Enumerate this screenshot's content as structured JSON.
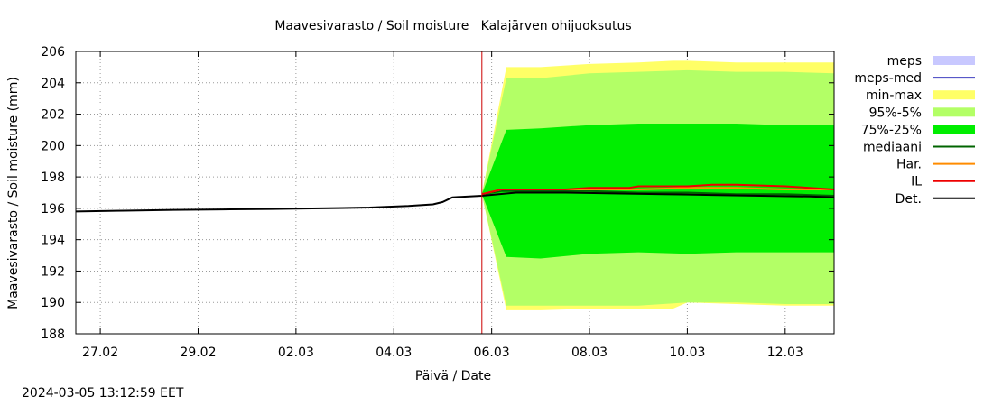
{
  "chart_data": {
    "type": "area",
    "title": "Maavesivarasto / Soil moisture   Kalajärven ohijuoksutus",
    "xlabel": "Päivä / Date",
    "ylabel": "Maavesivarasto / Soil moisture (mm)",
    "ylim": [
      188,
      206
    ],
    "xlim_days": [
      -0.5,
      15.0
    ],
    "x_unit": "days since 27.02 00:00",
    "forecast_start_day": 7.8,
    "grid": true,
    "legend_position": "right",
    "x_ticks": [
      {
        "day": 0,
        "label": "27.02"
      },
      {
        "day": 2,
        "label": "29.02"
      },
      {
        "day": 4,
        "label": "02.03"
      },
      {
        "day": 6,
        "label": "04.03"
      },
      {
        "day": 8,
        "label": "06.03"
      },
      {
        "day": 10,
        "label": "08.03"
      },
      {
        "day": 12,
        "label": "10.03"
      },
      {
        "day": 14,
        "label": "12.03"
      }
    ],
    "y_ticks": [
      188,
      190,
      192,
      194,
      196,
      198,
      200,
      202,
      204,
      206
    ],
    "legend": [
      {
        "key": "meps",
        "label": "meps",
        "kind": "box",
        "color": "#c8c8ff"
      },
      {
        "key": "meps-med",
        "label": "meps-med",
        "kind": "line",
        "color": "#4040c0"
      },
      {
        "key": "min-max",
        "label": "min-max",
        "kind": "box",
        "color": "#ffff66"
      },
      {
        "key": "p95-5",
        "label": "95%-5%",
        "kind": "box",
        "color": "#b3ff66"
      },
      {
        "key": "p75-25",
        "label": "75%-25%",
        "kind": "box",
        "color": "#00ee00"
      },
      {
        "key": "mediaani",
        "label": "mediaani",
        "kind": "line",
        "color": "#006400"
      },
      {
        "key": "har",
        "label": "Har.",
        "kind": "line",
        "color": "#ff8c00"
      },
      {
        "key": "il",
        "label": "IL",
        "kind": "line",
        "color": "#ee0000"
      },
      {
        "key": "det",
        "label": "Det.",
        "kind": "line",
        "color": "#000000"
      }
    ],
    "bands": [
      {
        "key": "min-max",
        "color": "#ffff66",
        "x": [
          7.8,
          8.3,
          9.0,
          10.0,
          11.0,
          11.7,
          12.0,
          13.0,
          14.0,
          15.0
        ],
        "lower": [
          196.9,
          189.5,
          189.5,
          189.6,
          189.6,
          189.6,
          190.0,
          189.9,
          189.8,
          189.8
        ],
        "upper": [
          196.9,
          205.0,
          205.0,
          205.2,
          205.3,
          205.4,
          205.4,
          205.3,
          205.3,
          205.3
        ]
      },
      {
        "key": "p95-5",
        "color": "#b3ff66",
        "x": [
          7.8,
          8.3,
          9.0,
          10.0,
          11.0,
          12.0,
          13.0,
          14.0,
          15.0
        ],
        "lower": [
          196.9,
          189.8,
          189.8,
          189.8,
          189.8,
          190.0,
          190.0,
          189.9,
          189.9
        ],
        "upper": [
          196.9,
          204.3,
          204.3,
          204.6,
          204.7,
          204.8,
          204.7,
          204.7,
          204.6
        ]
      },
      {
        "key": "p75-25",
        "color": "#00ee00",
        "x": [
          7.8,
          8.3,
          9.0,
          10.0,
          11.0,
          12.0,
          13.0,
          14.0,
          15.0
        ],
        "lower": [
          196.9,
          192.9,
          192.8,
          193.1,
          193.2,
          193.1,
          193.2,
          193.2,
          193.2
        ],
        "upper": [
          196.9,
          201.0,
          201.1,
          201.3,
          201.4,
          201.4,
          201.4,
          201.3,
          201.3
        ]
      }
    ],
    "series": [
      {
        "key": "mediaani",
        "name": "mediaani",
        "color": "#006400",
        "width": 2,
        "x": [
          7.8,
          8.2,
          9.0,
          10.0,
          11.0,
          12.0,
          13.0,
          14.0,
          15.0
        ],
        "y": [
          196.9,
          197.1,
          197.1,
          197.1,
          197.0,
          197.0,
          196.9,
          196.9,
          196.8
        ]
      },
      {
        "key": "har",
        "name": "Har.",
        "color": "#ff8c00",
        "width": 2,
        "x": [
          7.8,
          8.2,
          9.0,
          10.0,
          11.0,
          12.0,
          13.0,
          14.0,
          15.0
        ],
        "y": [
          196.9,
          197.2,
          197.2,
          197.2,
          197.2,
          197.3,
          197.3,
          197.2,
          197.2
        ]
      },
      {
        "key": "il",
        "name": "IL",
        "color": "#ee0000",
        "width": 2,
        "x": [
          7.8,
          8.2,
          9.0,
          9.5,
          10.0,
          10.8,
          11.0,
          12.0,
          12.5,
          13.0,
          14.0,
          15.0
        ],
        "y": [
          196.9,
          197.2,
          197.2,
          197.2,
          197.3,
          197.3,
          197.4,
          197.4,
          197.5,
          197.5,
          197.4,
          197.2
        ]
      },
      {
        "key": "det",
        "name": "Det.",
        "color": "#000000",
        "width": 2,
        "x": [
          -0.5,
          0.5,
          1.5,
          2.5,
          3.5,
          4.5,
          5.5,
          6.3,
          6.8,
          7.0,
          7.2,
          7.8,
          8.5,
          9.5,
          10.5,
          11.5,
          12.5,
          13.5,
          14.5,
          15.0
        ],
        "y": [
          195.8,
          195.85,
          195.9,
          195.93,
          195.96,
          196.0,
          196.05,
          196.15,
          196.25,
          196.4,
          196.7,
          196.8,
          197.0,
          197.0,
          196.95,
          196.9,
          196.85,
          196.8,
          196.75,
          196.7
        ]
      }
    ]
  },
  "footer": {
    "timestamp": "2024-03-05 13:12:59 EET"
  }
}
